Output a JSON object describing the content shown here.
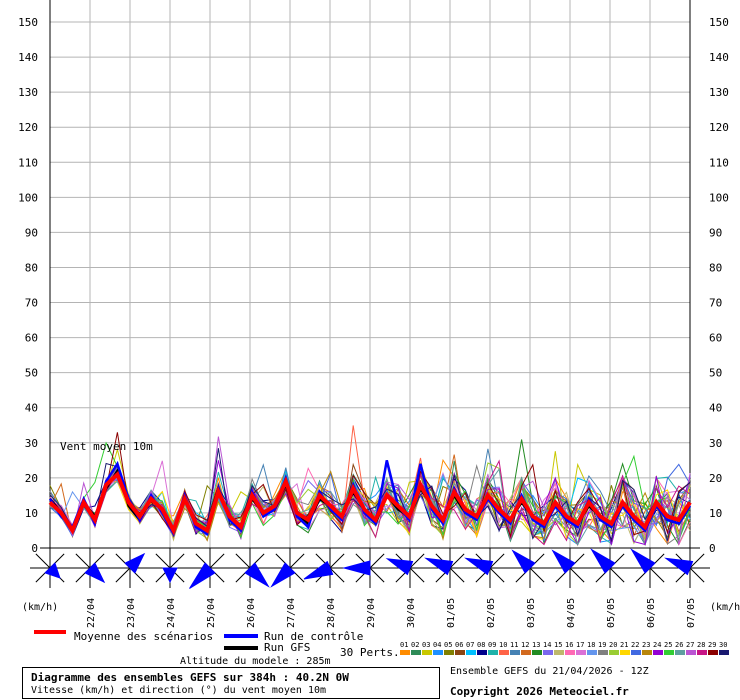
{
  "chart_data": {
    "type": "line",
    "ylim": [
      0,
      150
    ],
    "yticks": [
      0,
      10,
      20,
      30,
      40,
      50,
      60,
      70,
      80,
      90,
      100,
      110,
      120,
      130,
      140,
      150
    ],
    "ylabel_left": "(km/h)",
    "ylabel_right": "(km/h)",
    "annotation": "Vent moyen 10m",
    "x_hours_range": [
      0,
      384
    ],
    "date_labels": [
      "22/04",
      "23/04",
      "24/04",
      "25/04",
      "26/04",
      "27/04",
      "28/04",
      "29/04",
      "30/04",
      "01/05",
      "02/05",
      "03/05",
      "04/05",
      "05/05",
      "06/05",
      "07/05"
    ],
    "mean": [
      13,
      10,
      5,
      13,
      8,
      18,
      21,
      13,
      9,
      14,
      11,
      5,
      14,
      7,
      5,
      16,
      9,
      6,
      15,
      10,
      12,
      19,
      10,
      8,
      15,
      12,
      9,
      17,
      11,
      8,
      15,
      12,
      9,
      18,
      12,
      8,
      16,
      11,
      9,
      15,
      11,
      8,
      14,
      9,
      7,
      13,
      9,
      7,
      13,
      9,
      7,
      13,
      9,
      6,
      13,
      9,
      8,
      13
    ],
    "control": [
      14,
      9,
      6,
      14,
      7,
      19,
      24,
      14,
      8,
      15,
      10,
      4,
      15,
      6,
      4,
      17,
      8,
      5,
      16,
      9,
      11,
      20,
      9,
      6,
      16,
      11,
      8,
      18,
      10,
      7,
      25,
      12,
      8,
      24,
      11,
      7,
      17,
      10,
      8,
      14,
      10,
      7,
      15,
      8,
      6,
      12,
      8,
      6,
      14,
      8,
      6,
      12,
      8,
      5,
      12,
      8,
      7,
      12
    ],
    "gfs": [
      14,
      10,
      5,
      13,
      9,
      17,
      22,
      12,
      8,
      14,
      11,
      5,
      14,
      7,
      5,
      16,
      9,
      6,
      14,
      10,
      12,
      18,
      10,
      7,
      14,
      12,
      9,
      16,
      11,
      7,
      15,
      11,
      9,
      17,
      12,
      8,
      15,
      10,
      9,
      14,
      11,
      8,
      13,
      9,
      7,
      12,
      9,
      7,
      12,
      9,
      6,
      12,
      9,
      6,
      12,
      8,
      7,
      12
    ],
    "wind_direction_hours": [
      0,
      24,
      48,
      72,
      96,
      120,
      144,
      168,
      192,
      216,
      240,
      264,
      288,
      312,
      336,
      360,
      384
    ],
    "wind_direction_deg": [
      315,
      315,
      225,
      0,
      45,
      315,
      45,
      67,
      90,
      112,
      112,
      112,
      135,
      135,
      135,
      135,
      112
    ],
    "wind_direction_mean": [
      0,
      40,
      40,
      0,
      100,
      80,
      80,
      95,
      80,
      70,
      80,
      80,
      70,
      70,
      80,
      80,
      80
    ],
    "legend": {
      "mean_label": "Moyenne des scénarios",
      "control_label": "Run de contrôle",
      "gfs_label": "Run GFS",
      "perts_label": "30 Perts.",
      "altitude_label": "Altitude du modele : 285m"
    },
    "perturbations": [
      "01",
      "02",
      "03",
      "04",
      "05",
      "06",
      "07",
      "08",
      "09",
      "10",
      "11",
      "12",
      "13",
      "14",
      "15",
      "16",
      "17",
      "18",
      "19",
      "20",
      "21",
      "22",
      "23",
      "24",
      "25",
      "26",
      "27",
      "28",
      "29",
      "30"
    ],
    "perturbation_colors": [
      "#ff8c00",
      "#2e8b57",
      "#c8c800",
      "#1e90ff",
      "#808000",
      "#8b4513",
      "#00bfff",
      "#00008b",
      "#20b2aa",
      "#ff6347",
      "#4682b4",
      "#d2691e",
      "#228b22",
      "#7b68ee",
      "#bdb76b",
      "#ff69b4",
      "#da70d6",
      "#6495ed",
      "#808080",
      "#9acd32",
      "#ffd700",
      "#4169e1",
      "#b8860b",
      "#9400d3",
      "#32cd32",
      "#5f9ea0",
      "#ba55d3",
      "#c71585",
      "#8b0000",
      "#191970"
    ],
    "colors": {
      "mean": "#ff0000",
      "control": "#0000ff",
      "gfs": "#000000",
      "wind_arrow": "#0000ff"
    }
  },
  "info": {
    "title": "Diagramme des ensembles GEFS sur 384h : 40.2N 0W",
    "subtitle": "Vitesse (km/h) et direction (°) du vent moyen 10m",
    "run": "Ensemble GEFS du 21/04/2026 - 12Z",
    "copyright": "Copyright 2026 Meteociel.fr"
  }
}
